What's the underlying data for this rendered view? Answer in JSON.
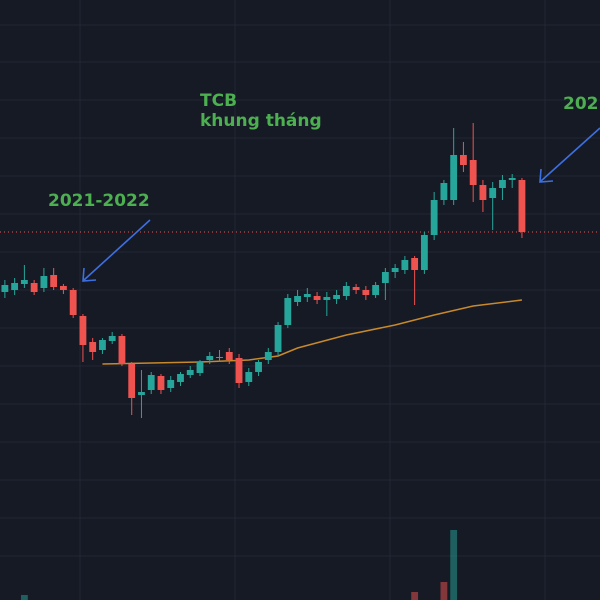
{
  "chart_data": {
    "type": "candlestick",
    "annotations": [
      "TCB",
      "khung tháng",
      "2021-2022",
      "202"
    ],
    "xlim": [
      -0.5,
      61
    ],
    "ylim": [
      0,
      600
    ],
    "up_color": "#26a69a",
    "down_color": "#ef5350",
    "x": [
      0,
      1,
      2,
      3,
      4,
      5,
      6,
      7,
      8,
      9,
      10,
      11,
      12,
      13,
      14,
      15,
      16,
      17,
      18,
      19,
      20,
      21,
      22,
      23,
      24,
      25,
      26,
      27,
      28,
      29,
      30,
      31,
      32,
      33,
      34,
      35,
      36,
      37,
      38,
      39,
      40,
      41,
      42,
      43,
      44,
      45,
      46,
      47,
      48,
      49,
      50,
      51,
      52,
      53
    ],
    "open": [
      308,
      310,
      316,
      317,
      312,
      325,
      314,
      310,
      284,
      258,
      250,
      259,
      264,
      236,
      205,
      210,
      224,
      212,
      218,
      225,
      227,
      240,
      243,
      248,
      242,
      218,
      228,
      240,
      248,
      275,
      298,
      303,
      304,
      300,
      301,
      304,
      313,
      310,
      305,
      317,
      328,
      330,
      342,
      330,
      365,
      400,
      400,
      445,
      440,
      415,
      402,
      412,
      420,
      420
    ],
    "high": [
      320,
      322,
      335,
      320,
      332,
      332,
      316,
      312,
      286,
      262,
      262,
      268,
      266,
      238,
      230,
      228,
      226,
      224,
      228,
      234,
      240,
      248,
      250,
      252,
      246,
      232,
      240,
      252,
      278,
      306,
      310,
      312,
      308,
      308,
      310,
      318,
      316,
      314,
      318,
      332,
      336,
      344,
      344,
      368,
      408,
      420,
      472,
      458,
      477,
      420,
      418,
      425,
      426,
      422
    ],
    "low": [
      302,
      305,
      312,
      305,
      308,
      310,
      306,
      282,
      238,
      240,
      246,
      256,
      234,
      185,
      182,
      206,
      206,
      208,
      214,
      222,
      224,
      236,
      238,
      236,
      212,
      214,
      224,
      236,
      244,
      272,
      294,
      298,
      296,
      284,
      296,
      300,
      306,
      300,
      302,
      300,
      322,
      326,
      295,
      326,
      360,
      395,
      395,
      428,
      398,
      388,
      370,
      400,
      412,
      362
    ],
    "close": [
      315,
      317,
      320,
      308,
      324,
      313,
      310,
      285,
      255,
      248,
      260,
      264,
      236,
      202,
      208,
      225,
      210,
      220,
      226,
      230,
      238,
      244,
      242,
      240,
      217,
      228,
      238,
      248,
      275,
      302,
      304,
      306,
      300,
      303,
      305,
      314,
      310,
      305,
      315,
      328,
      332,
      340,
      330,
      365,
      400,
      417,
      445,
      435,
      415,
      400,
      412,
      420,
      422,
      368
    ],
    "moving_average": {
      "color": "#c8892b",
      "x": [
        10,
        20,
        25,
        28,
        30,
        35,
        40,
        44,
        48,
        53
      ],
      "values": [
        236,
        238,
        240,
        244,
        252,
        265,
        275,
        285,
        294,
        300
      ]
    },
    "volume": {
      "x": [
        2,
        42,
        45,
        46
      ],
      "values": [
        5,
        8,
        18,
        70
      ],
      "colors": [
        "#26a69a",
        "#ef5350",
        "#ef5350",
        "#26a69a"
      ]
    }
  }
}
